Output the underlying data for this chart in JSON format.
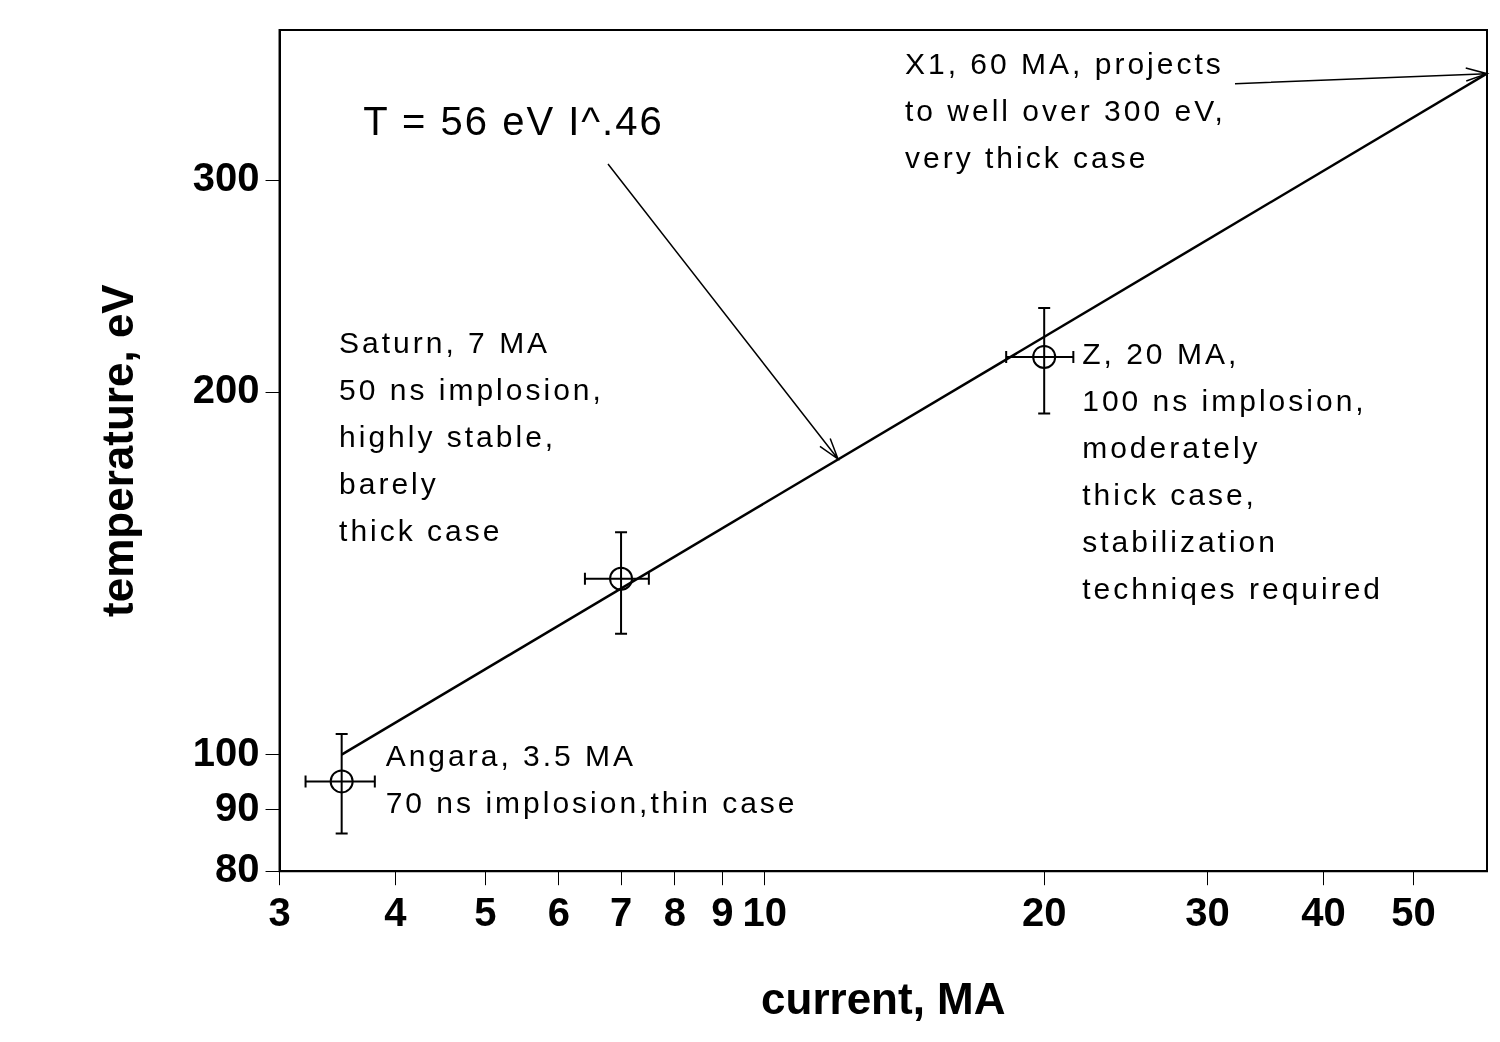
{
  "chart_data": {
    "type": "scatter",
    "xlabel": "current, MA",
    "ylabel": "temperature, eV",
    "log": "xy",
    "grid": false,
    "legend": false,
    "xlim": [
      3,
      60
    ],
    "xticks": [
      3,
      4,
      5,
      6,
      7,
      8,
      9,
      10,
      20,
      30,
      40,
      50
    ],
    "ylim": [
      80,
      400
    ],
    "yticks": [
      80,
      90,
      100,
      200,
      300
    ],
    "series": [
      {
        "type": "line",
        "x": [
          3.5,
          60
        ],
        "values": [
          100,
          368
        ],
        "color": "#000000",
        "marker": "none",
        "line_style": "solid"
      },
      {
        "x": [
          3.5,
          7,
          20
        ],
        "values": [
          95,
          140,
          214
        ],
        "errors": [
          [
            86,
            104
          ],
          [
            126,
            153
          ],
          [
            192,
            235
          ]
        ],
        "xerrors": [
          [
            3.2,
            3.8
          ],
          [
            6.4,
            7.5
          ],
          [
            18.2,
            21.5
          ]
        ],
        "color": "#000000",
        "marker": "circle"
      }
    ],
    "annotations": [
      {
        "text": "T = 56 eV I^.46",
        "x": 12,
        "y": 176
      },
      {
        "text": "X1, 60 MA, projects\nto well over 300 eV,\nvery thick case",
        "x": 60,
        "y": 368
      },
      {
        "text": "Saturn, 7 MA\n50 ns implosion,\nhighly stable,\nbarely\nthick case",
        "x": 7,
        "y": 140
      },
      {
        "text": "Angara, 3.5 MA\n70 ns implosion,thin case",
        "x": 3.5,
        "y": 95
      },
      {
        "text": "Z, 20 MA,\n100 ns implosion,\nmoderately\nthick case,\nstabilization\ntechniqes required",
        "x": 20,
        "y": 214
      }
    ]
  }
}
